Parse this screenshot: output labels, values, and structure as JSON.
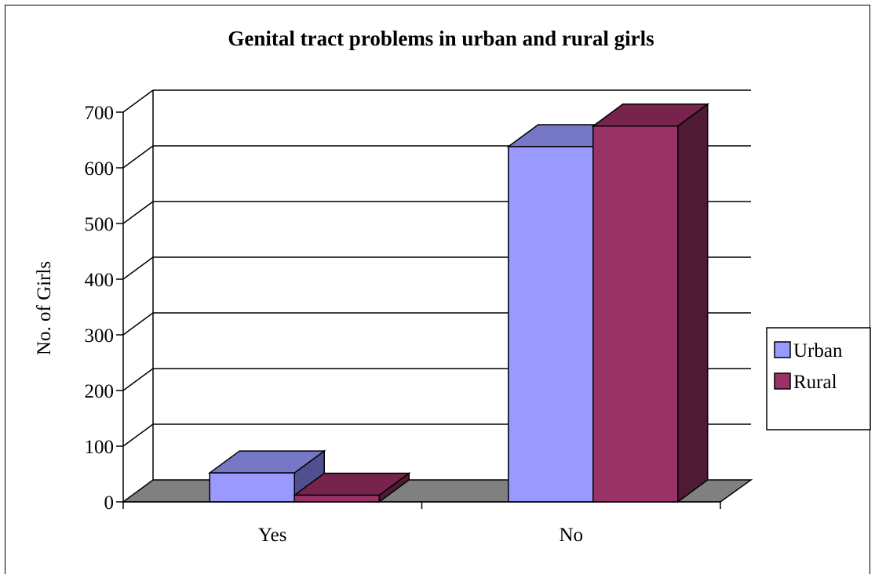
{
  "chart_data": {
    "type": "bar",
    "title": "Genital tract problems  in urban and rural girls",
    "xlabel": "",
    "ylabel": "No. of Girls",
    "categories": [
      "Yes",
      "No"
    ],
    "series": [
      {
        "name": "Urban",
        "values": [
          52,
          638
        ],
        "color": "#9999FF",
        "top_color": "#7777C8",
        "side_color": "#505090"
      },
      {
        "name": "Rural",
        "values": [
          12,
          675
        ],
        "color": "#993366",
        "top_color": "#77234D",
        "side_color": "#4F1A33"
      }
    ],
    "ylim": [
      0,
      700
    ],
    "yticks": [
      0,
      100,
      200,
      300,
      400,
      500,
      600,
      700
    ],
    "grid": true,
    "legend_position": "right",
    "floor_color": "#808080"
  }
}
